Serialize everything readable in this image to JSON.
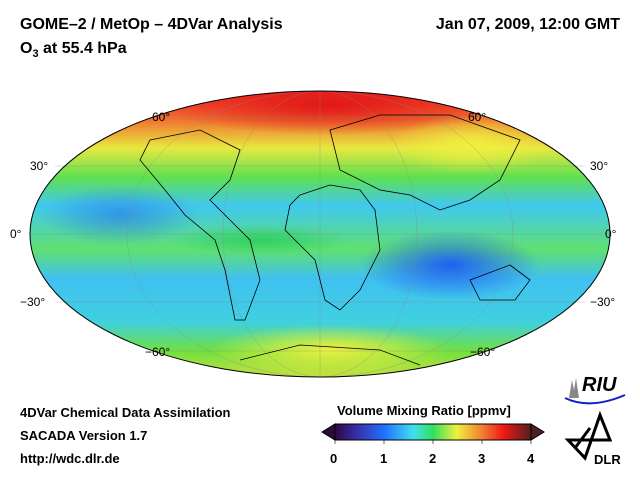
{
  "header": {
    "title": "GOME–2 / MetOp – 4DVar Analysis",
    "subtitle_prefix": "O",
    "subtitle_sub": "3",
    "subtitle_suffix": " at 55.4 hPa",
    "datetime": "Jan 07, 2009, 12:00 GMT"
  },
  "map": {
    "projection": "Mollweide",
    "lat_labels": [
      "60°",
      "30°",
      "0°",
      "−30°",
      "−60°"
    ]
  },
  "footer": {
    "line1": "4DVar Chemical Data Assimilation",
    "line2": "SACADA Version 1.7",
    "link": "http://wdc.dlr.de"
  },
  "colorbar": {
    "title": "Volume Mixing Ratio [ppmv]",
    "ticks": [
      "0",
      "1",
      "2",
      "3",
      "4"
    ],
    "range": [
      0,
      4
    ],
    "colors": [
      "#2a0a40",
      "#3a2aa0",
      "#2070ff",
      "#40d0f0",
      "#30e060",
      "#f0f040",
      "#f08030",
      "#f01818",
      "#502020"
    ]
  },
  "logos": {
    "riu": "RIU",
    "dlr": "DLR"
  }
}
